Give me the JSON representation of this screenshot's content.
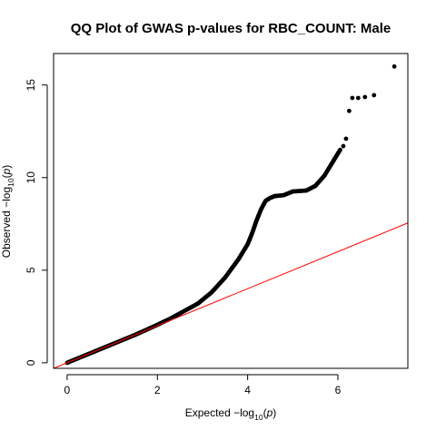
{
  "chart_data": {
    "type": "scatter",
    "title": "QQ Plot of GWAS p-values for RBC_COUNT: Male",
    "xlabel": {
      "prefix": "Expected  −log",
      "subscript": "10",
      "open": "(",
      "var": "p",
      "close": ")"
    },
    "ylabel": {
      "prefix": "Observed  −log",
      "subscript": "10",
      "open": "(",
      "var": "p",
      "close": ")"
    },
    "xlim": [
      -0.3,
      7.55
    ],
    "ylim": [
      -0.3,
      16.7
    ],
    "xticks": [
      0,
      2,
      4,
      6
    ],
    "yticks": [
      0,
      5,
      10,
      15
    ],
    "grid": false,
    "reference_line": {
      "slope": 1,
      "intercept": 0,
      "color": "#ff0000"
    },
    "point_color": "#000000",
    "curve": [
      [
        0.0,
        0.0
      ],
      [
        0.5,
        0.5
      ],
      [
        1.0,
        1.0
      ],
      [
        1.5,
        1.5
      ],
      [
        2.0,
        2.05
      ],
      [
        2.3,
        2.4
      ],
      [
        2.6,
        2.8
      ],
      [
        2.9,
        3.2
      ],
      [
        3.2,
        3.8
      ],
      [
        3.5,
        4.6
      ],
      [
        3.8,
        5.6
      ],
      [
        4.0,
        6.4
      ],
      [
        4.1,
        7.0
      ],
      [
        4.2,
        7.7
      ],
      [
        4.3,
        8.3
      ],
      [
        4.4,
        8.75
      ],
      [
        4.5,
        8.9
      ],
      [
        4.6,
        9.0
      ],
      [
        4.8,
        9.05
      ],
      [
        5.0,
        9.25
      ],
      [
        5.3,
        9.3
      ],
      [
        5.5,
        9.55
      ],
      [
        5.7,
        10.1
      ],
      [
        5.85,
        10.7
      ],
      [
        6.0,
        11.3
      ],
      [
        6.05,
        11.5
      ]
    ],
    "outliers": [
      [
        6.12,
        11.7
      ],
      [
        6.18,
        12.1
      ],
      [
        6.25,
        13.6
      ],
      [
        6.32,
        14.3
      ],
      [
        6.45,
        14.3
      ],
      [
        6.6,
        14.35
      ],
      [
        6.8,
        14.45
      ],
      [
        7.25,
        16.0
      ]
    ]
  }
}
